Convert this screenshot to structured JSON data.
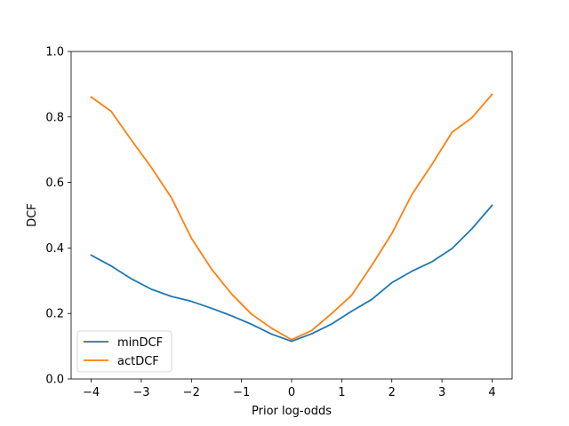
{
  "chart_data": {
    "type": "line",
    "title": "",
    "xlabel": "Prior log-odds",
    "ylabel": "DCF",
    "xlim": [
      -4.4,
      4.4
    ],
    "ylim": [
      0.0,
      1.0
    ],
    "xticks": [
      -4,
      -3,
      -2,
      -1,
      0,
      1,
      2,
      3,
      4
    ],
    "xtick_labels": [
      "−4",
      "−3",
      "−2",
      "−1",
      "0",
      "1",
      "2",
      "3",
      "4"
    ],
    "yticks": [
      0.0,
      0.2,
      0.4,
      0.6,
      0.8,
      1.0
    ],
    "ytick_labels": [
      "0.0",
      "0.2",
      "0.4",
      "0.6",
      "0.8",
      "1.0"
    ],
    "grid": false,
    "legend_position": "lower-left",
    "x": [
      -4.0,
      -3.6,
      -3.2,
      -2.8,
      -2.4,
      -2.0,
      -1.6,
      -1.2,
      -0.8,
      -0.4,
      0.0,
      0.4,
      0.8,
      1.2,
      1.6,
      2.0,
      2.4,
      2.8,
      3.2,
      3.6,
      4.0
    ],
    "series": [
      {
        "name": "minDCF",
        "color": "#1f77b4",
        "values": [
          0.378,
          0.345,
          0.306,
          0.274,
          0.252,
          0.237,
          0.216,
          0.193,
          0.167,
          0.137,
          0.115,
          0.138,
          0.168,
          0.207,
          0.243,
          0.294,
          0.329,
          0.358,
          0.398,
          0.459,
          0.53
        ]
      },
      {
        "name": "actDCF",
        "color": "#ff7f0e",
        "values": [
          0.861,
          0.817,
          0.73,
          0.646,
          0.554,
          0.43,
          0.336,
          0.26,
          0.198,
          0.155,
          0.12,
          0.148,
          0.2,
          0.256,
          0.347,
          0.444,
          0.563,
          0.655,
          0.753,
          0.798,
          0.869
        ]
      }
    ]
  }
}
